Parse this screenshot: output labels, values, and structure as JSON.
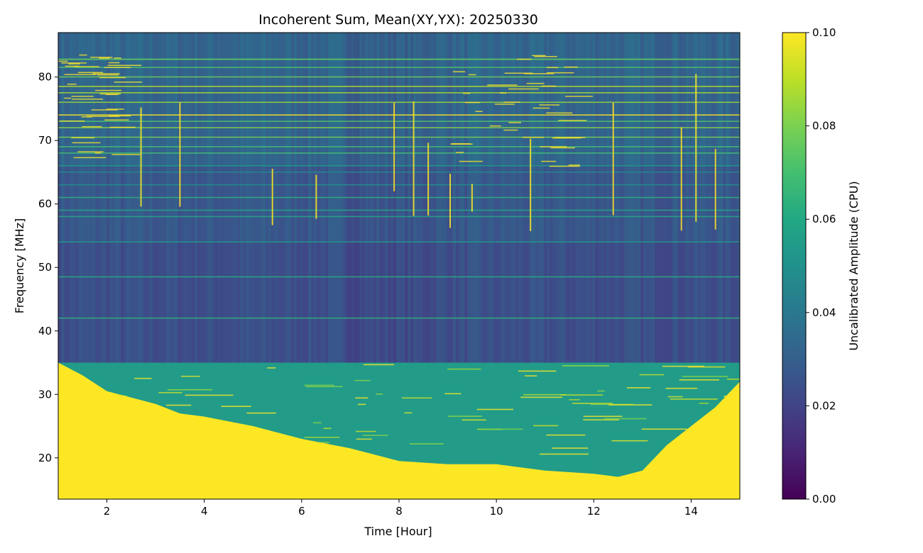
{
  "chart_data": {
    "type": "heatmap",
    "title": "Incoherent Sum, Mean(XY,YX): 20250330",
    "xlabel": "Time [Hour]",
    "ylabel": "Frequency [MHz]",
    "colorbar_label": "Uncalibrated Amplitude (CPU)",
    "colormap": "viridis",
    "xlim": [
      1.0,
      15.0
    ],
    "ylim": [
      13.5,
      87.0
    ],
    "clim": [
      0.0,
      0.1
    ],
    "x_ticks": [
      2,
      4,
      6,
      8,
      10,
      12,
      14
    ],
    "x_tick_labels": [
      "2",
      "4",
      "6",
      "8",
      "10",
      "12",
      "14"
    ],
    "y_ticks": [
      20,
      30,
      40,
      50,
      60,
      70,
      80
    ],
    "y_tick_labels": [
      "20",
      "30",
      "40",
      "50",
      "60",
      "70",
      "80"
    ],
    "colorbar_ticks": [
      0.0,
      0.02,
      0.04,
      0.06,
      0.08,
      0.1
    ],
    "colorbar_tick_labels": [
      "0.00",
      "0.02",
      "0.04",
      "0.06",
      "0.08",
      "0.10"
    ],
    "background_levels": [
      {
        "f_min": 66,
        "f_max": 87,
        "level": 0.035
      },
      {
        "f_min": 54,
        "f_max": 66,
        "level": 0.027
      },
      {
        "f_min": 35,
        "f_max": 54,
        "level": 0.022
      },
      {
        "f_min": 29,
        "f_max": 35,
        "level": 0.05
      }
    ],
    "saturation_boundary": {
      "time": [
        1.0,
        1.5,
        2.0,
        2.5,
        3.0,
        3.5,
        4.0,
        5.0,
        6.0,
        7.0,
        8.0,
        9.0,
        10.0,
        11.0,
        12.0,
        12.5,
        13.0,
        13.5,
        14.0,
        14.5,
        15.0
      ],
      "freq": [
        35,
        33,
        30.5,
        29.5,
        28.5,
        27,
        26.5,
        25,
        23,
        21.5,
        19.5,
        19,
        19,
        18,
        17.5,
        17,
        18,
        22,
        25,
        28,
        32
      ]
    },
    "rfi_lines_mhz": [
      82.8,
      81.5,
      80,
      78.5,
      77.5,
      76,
      74,
      73,
      72,
      70.5,
      69,
      68,
      66,
      65,
      63,
      61,
      59,
      58,
      54,
      48.5,
      42,
      33.5,
      32,
      30.5,
      29.5,
      28.5,
      26.5,
      25,
      23.5,
      22,
      20.5
    ],
    "broadband_bursts_hour": [
      2.7,
      3.5,
      5.4,
      6.3,
      7.9,
      8.3,
      8.6,
      9.05,
      9.5,
      10.7,
      12.4,
      13.8,
      14.1,
      14.5
    ]
  }
}
